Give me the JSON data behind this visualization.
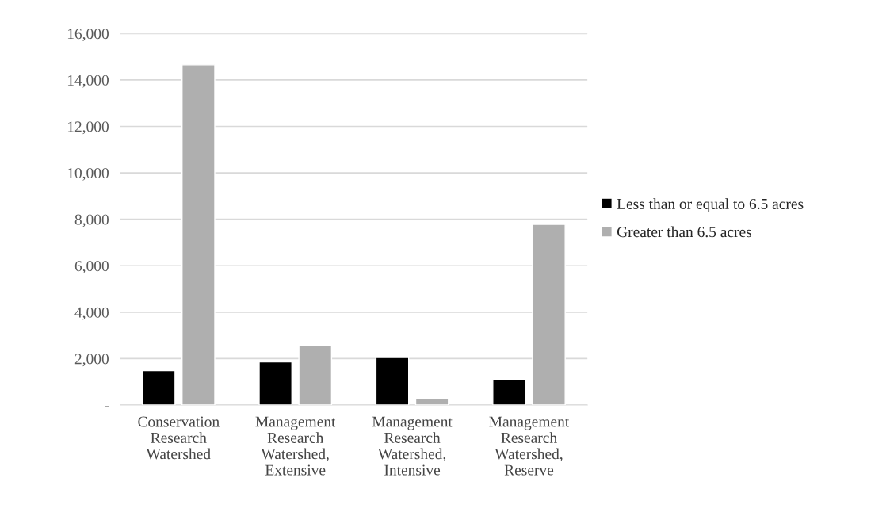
{
  "chart_data": {
    "type": "bar",
    "categories": [
      "Conservation\nResearch\nWatershed",
      "Management\nResearch\nWatershed,\nExtensive",
      "Management\nResearch\nWatershed,\nIntensive",
      "Management\nResearch\nWatershed,\nReserve"
    ],
    "series": [
      {
        "name": "Less than or equal to 6.5 acres",
        "color": "#000000",
        "values": [
          1480,
          1860,
          2050,
          1110
        ]
      },
      {
        "name": "Greater than 6.5 acres",
        "color": "#afafaf",
        "values": [
          14650,
          2580,
          300,
          7780
        ]
      }
    ],
    "ylim": [
      0,
      16000
    ],
    "yticks": [
      {
        "value": 0,
        "label": "-"
      },
      {
        "value": 2000,
        "label": "2,000"
      },
      {
        "value": 4000,
        "label": "4,000"
      },
      {
        "value": 6000,
        "label": "6,000"
      },
      {
        "value": 8000,
        "label": "8,000"
      },
      {
        "value": 10000,
        "label": "10,000"
      },
      {
        "value": 12000,
        "label": "12,000"
      },
      {
        "value": 14000,
        "label": "14,000"
      },
      {
        "value": 16000,
        "label": "16,000"
      }
    ],
    "grid": "y",
    "legend": "right"
  }
}
